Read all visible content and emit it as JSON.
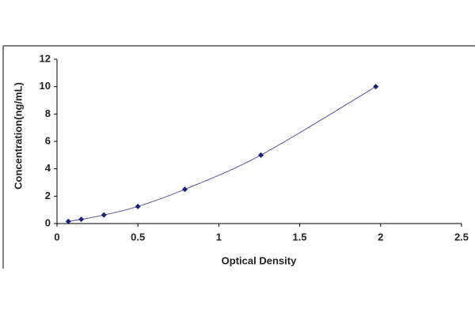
{
  "chart_data": {
    "type": "scatter",
    "x_label": "Optical Density",
    "y_label": "Concentration(ng/mL)",
    "x": [
      0.07,
      0.15,
      0.29,
      0.5,
      0.79,
      1.26,
      1.97
    ],
    "values": [
      0.156,
      0.312,
      0.625,
      1.25,
      2.5,
      5,
      10
    ],
    "color": "#1f1f6e",
    "line_color": "#55558f",
    "trendline": true,
    "xlim": [
      0,
      2.5
    ],
    "xticks": [
      0,
      0.5,
      1,
      1.5,
      2,
      2.5
    ],
    "ylim": [
      0,
      12
    ],
    "yticks": [
      0,
      2,
      4,
      6,
      8,
      10,
      12
    ],
    "grid": false
  }
}
